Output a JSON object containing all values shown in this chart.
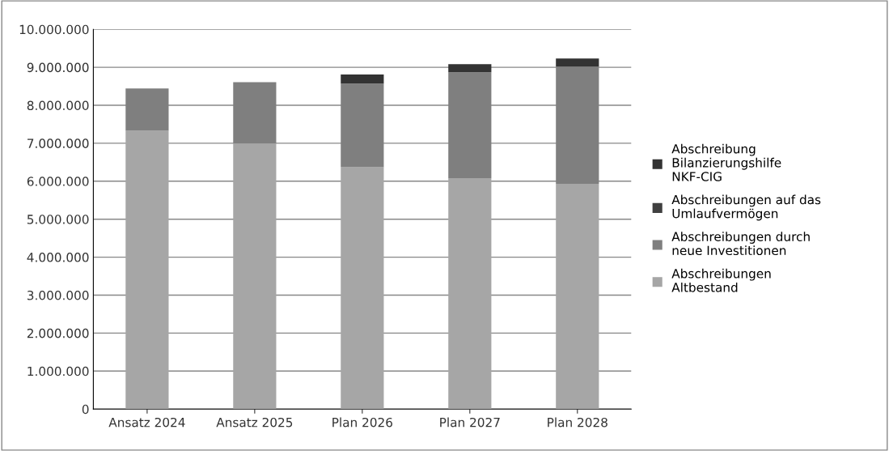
{
  "chart_data": {
    "type": "bar",
    "stacked": true,
    "grid": "y",
    "legend": "right",
    "categories": [
      "Ansatz 2024",
      "Ansatz 2025",
      "Plan 2026",
      "Plan 2027",
      "Plan 2028"
    ],
    "series": [
      {
        "name": "Abschreibungen Altbestand",
        "color": "#a6a6a6",
        "values": [
          7330000,
          6990000,
          6370000,
          6080000,
          5930000
        ]
      },
      {
        "name": "Abschreibungen durch neue Investitionen",
        "color": "#7f7f7f",
        "values": [
          1110000,
          1620000,
          2200000,
          2790000,
          3090000
        ]
      },
      {
        "name": "Abschreibungen auf das Umlaufvermögen",
        "color": "#404040",
        "values": [
          0,
          0,
          0,
          0,
          0
        ]
      },
      {
        "name": "Abschreibung Bilanzierungshilfe NKF-CIG",
        "color": "#333333",
        "values": [
          0,
          0,
          240000,
          210000,
          210000
        ]
      }
    ],
    "ylim": [
      0,
      10000000
    ],
    "yticks": [
      {
        "value": 0,
        "label": "0"
      },
      {
        "value": 1000000,
        "label": "1.000.000"
      },
      {
        "value": 2000000,
        "label": "2.000.000"
      },
      {
        "value": 3000000,
        "label": "3.000.000"
      },
      {
        "value": 4000000,
        "label": "4.000.000"
      },
      {
        "value": 5000000,
        "label": "5.000.000"
      },
      {
        "value": 6000000,
        "label": "6.000.000"
      },
      {
        "value": 7000000,
        "label": "7.000.000"
      },
      {
        "value": 8000000,
        "label": "8.000.000"
      },
      {
        "value": 9000000,
        "label": "9.000.000"
      },
      {
        "value": 10000000,
        "label": "10.000.000"
      }
    ]
  }
}
